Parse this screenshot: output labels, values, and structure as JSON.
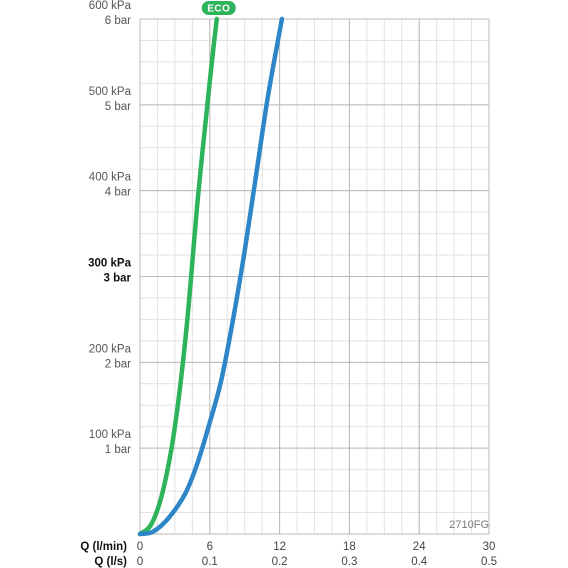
{
  "chart_data": {
    "type": "line",
    "xlabel_primary": "Q (l/min)",
    "xlabel_secondary": "Q (l/s)",
    "x_ticks_primary": [
      "0",
      "6",
      "12",
      "18",
      "24",
      "30"
    ],
    "x_ticks_secondary": [
      "0",
      "0.1",
      "0.2",
      "0.3",
      "0.4",
      "0.5"
    ],
    "xlim": [
      0,
      30
    ],
    "ylim": [
      0,
      600
    ],
    "y_ticks": [
      {
        "value": 100,
        "kpa": "100 kPa",
        "bar": "1 bar",
        "bold": false
      },
      {
        "value": 200,
        "kpa": "200 kPa",
        "bar": "2 bar",
        "bold": false
      },
      {
        "value": 300,
        "kpa": "300 kPa",
        "bar": "3 bar",
        "bold": true
      },
      {
        "value": 400,
        "kpa": "400 kPa",
        "bar": "4 bar",
        "bold": false
      },
      {
        "value": 500,
        "kpa": "500 kPa",
        "bar": "5 bar",
        "bold": false
      },
      {
        "value": 600,
        "kpa": "600 kPa",
        "bar": "6 bar",
        "bold": false
      }
    ],
    "grid": true,
    "code": "2710FG",
    "series": [
      {
        "name": "ECO",
        "color": "#2db35a",
        "x": [
          0,
          1,
          2,
          3,
          4,
          5,
          6.1,
          6.6
        ],
        "y": [
          0,
          12,
          52,
          125,
          240,
          395,
          540,
          600
        ]
      },
      {
        "color": "#2e86c9",
        "x": [
          0,
          1,
          2,
          3,
          4,
          5,
          6,
          7,
          8,
          9,
          10,
          11,
          12.2
        ],
        "y": [
          0,
          2,
          12,
          28,
          50,
          85,
          130,
          180,
          250,
          330,
          420,
          510,
          600
        ]
      }
    ]
  }
}
